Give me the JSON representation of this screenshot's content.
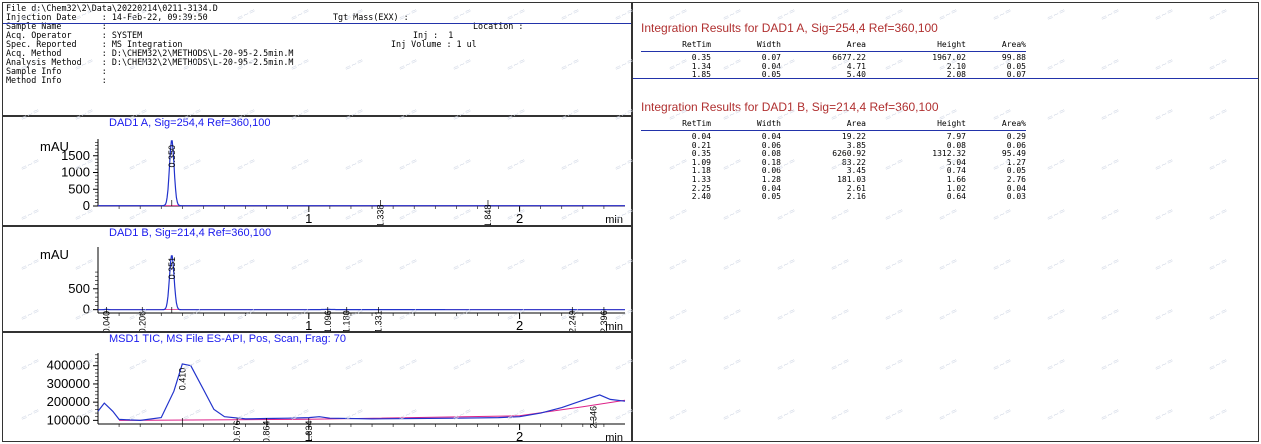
{
  "header": {
    "left_lines": [
      "File d:\\Chem32\\2\\Data\\20220214\\0211-3134.D",
      "Injection Date     : 14-Feb-22, 09:39:50",
      "Sample Name        :",
      "Acq. Operator      : SYSTEM",
      "Spec. Reported     : MS Integration",
      "Acq. Method        : D:\\CHEM32\\2\\METHODS\\L-20-95-2.5min.M",
      "Analysis Method    : D:\\CHEM32\\2\\METHODS\\L-20-95-2.5min.M",
      "Sample Info        :",
      "Method Info        :"
    ],
    "tgt_mass": "Tgt Mass(EXX) :",
    "location": "Location :",
    "inj": "Inj :  1",
    "inj_volume": "Inj Volume : 1 ul"
  },
  "chart_data": [
    {
      "type": "line",
      "title": "DAD1 A, Sig=254,4 Ref=360,100",
      "ylabel": "mAU",
      "xlabel": "min",
      "xlim": [
        0,
        2.5
      ],
      "ylim": [
        0,
        2000
      ],
      "yticks": [
        "1500",
        "1000",
        "500",
        "0"
      ],
      "ytick_values": [
        1500,
        1000,
        500,
        0
      ],
      "xticks": [
        "1",
        "2"
      ],
      "xtick_values": [
        1,
        2
      ],
      "peak_labels": [
        {
          "x": 0.35,
          "label": "0.350",
          "y": 1967
        },
        {
          "x": 1.34,
          "label": "1.338",
          "y": 100
        },
        {
          "x": 1.85,
          "label": "1.848",
          "y": 100
        }
      ],
      "peaks": [
        {
          "rt": 0.35,
          "height": 1967,
          "width": 0.035
        },
        {
          "rt": 1.34,
          "height": 2.1,
          "width": 0.02
        },
        {
          "rt": 1.85,
          "height": 2.08,
          "width": 0.02
        }
      ],
      "baseline": 10
    },
    {
      "type": "line",
      "title": "DAD1 B, Sig=214,4 Ref=360,100",
      "ylabel": "mAU",
      "xlabel": "min",
      "xlim": [
        0,
        2.5
      ],
      "ylim": [
        -80,
        1500
      ],
      "yticks": [
        "500",
        "0"
      ],
      "ytick_values": [
        500,
        0
      ],
      "xticks": [
        "1",
        "2"
      ],
      "xtick_values": [
        1,
        2
      ],
      "peak_labels": [
        {
          "x": 0.04,
          "label": "0.040",
          "y": 20
        },
        {
          "x": 0.21,
          "label": "0.206",
          "y": 20
        },
        {
          "x": 0.35,
          "label": "0.351",
          "y": 1312
        },
        {
          "x": 1.09,
          "label": "1.096",
          "y": 30
        },
        {
          "x": 1.18,
          "label": "1.180",
          "y": 30
        },
        {
          "x": 1.33,
          "label": "1.331",
          "y": 30
        },
        {
          "x": 2.25,
          "label": "2.249",
          "y": 30
        },
        {
          "x": 2.4,
          "label": "2.396",
          "y": 30
        }
      ],
      "peaks": [
        {
          "rt": 0.04,
          "height": 7.97,
          "width": 0.02
        },
        {
          "rt": 0.21,
          "height": 0.08,
          "width": 0.03
        },
        {
          "rt": 0.35,
          "height": 1312.32,
          "width": 0.035
        },
        {
          "rt": 1.09,
          "height": 5.04,
          "width": 0.08
        },
        {
          "rt": 1.18,
          "height": 0.74,
          "width": 0.03
        },
        {
          "rt": 1.33,
          "height": 1.66,
          "width": 0.5
        },
        {
          "rt": 2.25,
          "height": 1.02,
          "width": 0.02
        },
        {
          "rt": 2.4,
          "height": 0.64,
          "width": 0.02
        }
      ],
      "baseline": 0
    },
    {
      "type": "line",
      "title": "MSD1 TIC, MS File     ES-API, Pos, Scan, Frag: 70",
      "ylabel": "",
      "xlabel": "min",
      "xlim": [
        0,
        2.5
      ],
      "ylim": [
        80000,
        470000
      ],
      "yticks": [
        "400000",
        "300000",
        "200000",
        "100000"
      ],
      "ytick_values": [
        400000,
        300000,
        200000,
        100000
      ],
      "xticks": [
        "1",
        "2"
      ],
      "xtick_values": [
        1,
        2
      ],
      "peak_labels": [
        {
          "x": 0.4,
          "label": "0.410",
          "y": 400000
        },
        {
          "x": 0.66,
          "label": "0.676",
          "y": 110000
        },
        {
          "x": 0.8,
          "label": "0.864",
          "y": 110000
        },
        {
          "x": 1.0,
          "label": "1.034",
          "y": 110000
        },
        {
          "x": 2.35,
          "label": "2.346",
          "y": 190000
        }
      ],
      "trace": [
        [
          0.0,
          150000
        ],
        [
          0.03,
          195000
        ],
        [
          0.07,
          150000
        ],
        [
          0.1,
          105000
        ],
        [
          0.2,
          100000
        ],
        [
          0.3,
          115000
        ],
        [
          0.36,
          260000
        ],
        [
          0.4,
          410000
        ],
        [
          0.44,
          400000
        ],
        [
          0.5,
          270000
        ],
        [
          0.55,
          160000
        ],
        [
          0.6,
          120000
        ],
        [
          0.7,
          108000
        ],
        [
          0.8,
          110000
        ],
        [
          0.9,
          112000
        ],
        [
          1.0,
          115000
        ],
        [
          1.05,
          120000
        ],
        [
          1.1,
          112000
        ],
        [
          1.3,
          108000
        ],
        [
          1.5,
          110000
        ],
        [
          1.7,
          112000
        ],
        [
          1.9,
          115000
        ],
        [
          2.0,
          120000
        ],
        [
          2.1,
          140000
        ],
        [
          2.2,
          170000
        ],
        [
          2.3,
          210000
        ],
        [
          2.38,
          240000
        ],
        [
          2.43,
          215000
        ],
        [
          2.5,
          205000
        ]
      ],
      "baseline_trace": [
        [
          0.1,
          100000
        ],
        [
          1.0,
          106000
        ],
        [
          2.0,
          125000
        ],
        [
          2.3,
          175000
        ],
        [
          2.5,
          210000
        ]
      ]
    }
  ],
  "integration": [
    {
      "title": "Integration Results for DAD1 A, Sig=254,4 Ref=360,100",
      "columns": [
        "RetTim",
        "Width",
        "Area",
        "Height",
        "Area%"
      ],
      "rows": [
        [
          "0.35",
          "0.07",
          "6677.22",
          "1967.02",
          "99.88"
        ],
        [
          "1.34",
          "0.04",
          "4.71",
          "2.10",
          "0.05"
        ],
        [
          "1.85",
          "0.05",
          "5.40",
          "2.08",
          "0.07"
        ]
      ]
    },
    {
      "title": "Integration Results for DAD1 B, Sig=214,4 Ref=360,100",
      "columns": [
        "RetTim",
        "Width",
        "Area",
        "Height",
        "Area%"
      ],
      "rows": [
        [
          "0.04",
          "0.04",
          "19.22",
          "7.97",
          "0.29"
        ],
        [
          "0.21",
          "0.06",
          "3.85",
          "0.08",
          "0.06"
        ],
        [
          "0.35",
          "0.08",
          "6260.92",
          "1312.32",
          "95.49"
        ],
        [
          "1.09",
          "0.18",
          "83.22",
          "5.04",
          "1.27"
        ],
        [
          "1.18",
          "0.06",
          "3.45",
          "0.74",
          "0.05"
        ],
        [
          "1.33",
          "1.28",
          "181.03",
          "1.66",
          "2.76"
        ],
        [
          "2.25",
          "0.04",
          "2.61",
          "1.02",
          "0.04"
        ],
        [
          "2.40",
          "0.05",
          "2.16",
          "0.64",
          "0.03"
        ]
      ]
    }
  ],
  "colors": {
    "trace": "#2233cc",
    "baseline": "#dd2288",
    "title_blue": "#1a1aee",
    "int_title": "#b03030"
  }
}
